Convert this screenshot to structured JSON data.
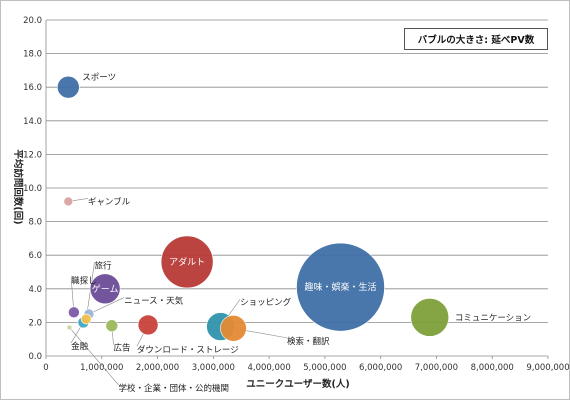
{
  "chart_data": {
    "type": "scatter",
    "subtype": "bubble",
    "xlabel": "ユニークユーザー数(人)",
    "ylabel": "平均訪問回数(回)",
    "size_note": "バブルの大きさ: 延べPV数",
    "xlim": [
      0,
      9000000
    ],
    "ylim": [
      0,
      20
    ],
    "x_ticks": [
      "0",
      "1,000,000",
      "2,000,000",
      "3,000,000",
      "4,000,000",
      "5,000,000",
      "6,000,000",
      "7,000,000",
      "8,000,000",
      "9,000,000"
    ],
    "y_ticks": [
      "0.0",
      "2.0",
      "4.0",
      "6.0",
      "8.0",
      "10.0",
      "12.0",
      "14.0",
      "16.0",
      "18.0",
      "20.0"
    ],
    "grid": "horizontal",
    "points": [
      {
        "label": "スポーツ",
        "x": 400000,
        "y": 16.0,
        "size": 11,
        "color": "#3f6fa6",
        "label_pos": "outside",
        "label_x": 650000,
        "label_y": 16.6
      },
      {
        "label": "ギャンブル",
        "x": 400000,
        "y": 9.2,
        "size": 4.5,
        "color": "#d9a3a0",
        "label_pos": "outside",
        "label_x": 750000,
        "label_y": 9.2
      },
      {
        "label": "アダルト",
        "x": 2530000,
        "y": 5.6,
        "size": 26,
        "color": "#b83a36",
        "label_pos": "inside"
      },
      {
        "label": "趣味・娯楽・生活",
        "x": 5280000,
        "y": 4.1,
        "size": 44,
        "color": "#3f6fa6",
        "label_pos": "inside"
      },
      {
        "label": "ゲーム",
        "x": 1060000,
        "y": 4.0,
        "size": 15,
        "color": "#6a4c98",
        "label_pos": "inside"
      },
      {
        "label": "コミュニケーション",
        "x": 6880000,
        "y": 2.3,
        "size": 19,
        "color": "#7ea03a",
        "label_pos": "outside",
        "label_x": 7330000,
        "label_y": 2.3
      },
      {
        "label": "ショッピング",
        "x": 3130000,
        "y": 1.75,
        "size": 14,
        "color": "#2f93ad",
        "label_pos": "outside",
        "label_x": 3480000,
        "label_y": 3.2
      },
      {
        "label": "検索・翻訳",
        "x": 3360000,
        "y": 1.65,
        "size": 13,
        "color": "#e48a34",
        "label_pos": "outside",
        "label_x": 4320000,
        "label_y": 0.9
      },
      {
        "label": "ダウンロード・ストレージ",
        "x": 1830000,
        "y": 1.85,
        "size": 10,
        "color": "#c8413b",
        "label_pos": "outside",
        "label_x": 1630000,
        "label_y": 0.4
      },
      {
        "label": "ニュース・天気",
        "x": 770000,
        "y": 2.5,
        "size": 5,
        "color": "#9bb5d6",
        "label_pos": "outside",
        "label_x": 1400000,
        "label_y": 3.3
      },
      {
        "label": "広告",
        "x": 1180000,
        "y": 1.8,
        "size": 6,
        "color": "#9bbb59",
        "label_pos": "outside",
        "label_x": 1210000,
        "label_y": 0.5
      },
      {
        "label": "職探し",
        "x": 500000,
        "y": 2.6,
        "size": 5.5,
        "color": "#7b5ba8",
        "label_pos": "outside",
        "label_x": 450000,
        "label_y": 4.5
      },
      {
        "label": "旅行",
        "x": 720000,
        "y": 2.2,
        "size": 5,
        "color": "#f2c04a",
        "label_pos": "outside",
        "label_x": 870000,
        "label_y": 5.4
      },
      {
        "label": "金融",
        "x": 670000,
        "y": 2.0,
        "size": 5.5,
        "color": "#40a8c4",
        "label_pos": "outside",
        "label_x": 450000,
        "label_y": 0.6
      },
      {
        "label": "学校・企業・団体・公的機関",
        "x": 420000,
        "y": 1.7,
        "size": 2.5,
        "color": "#c5d89a",
        "label_pos": "outside",
        "label_x": 1300000,
        "label_y": -1.9
      }
    ]
  },
  "legend": {
    "text": "バブルの大きさ: 延べPV数"
  }
}
